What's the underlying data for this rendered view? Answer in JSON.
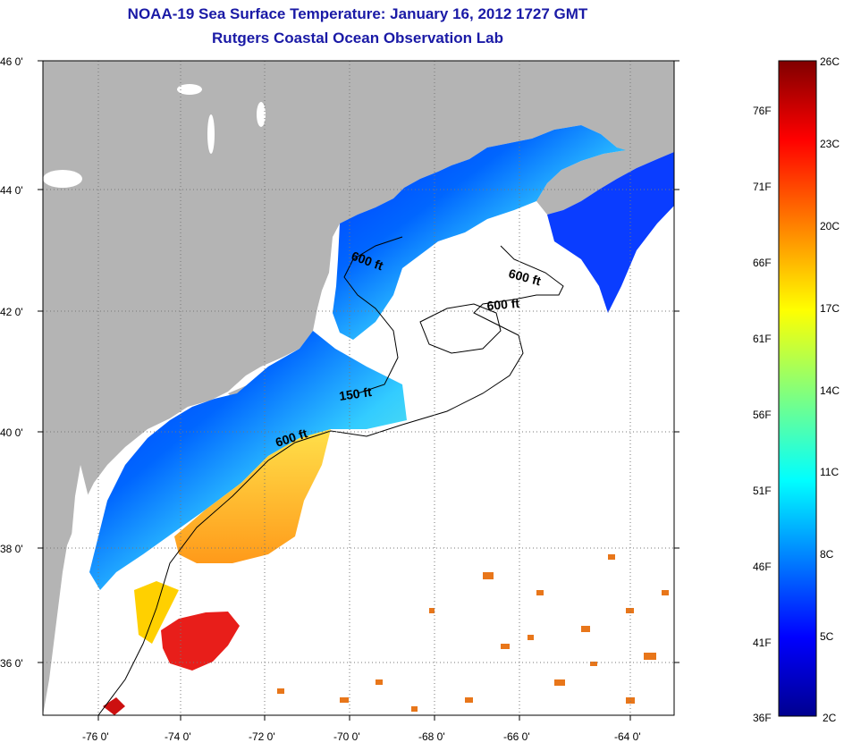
{
  "header": {
    "title_line1": "NOAA-19 Sea Surface Temperature:  January 16, 2012 1727 GMT",
    "title_line2": "Rutgers Coastal Ocean Observation Lab",
    "title_color": "#1a1aa6"
  },
  "map": {
    "lat_labels": [
      "46 0'",
      "44 0'",
      "42 0'",
      "40 0'",
      "38 0'",
      "36 0'"
    ],
    "lon_labels": [
      "-76 0'",
      "-74 0'",
      "-72 0'",
      "-70 0'",
      "-68 0'",
      "-66 0'",
      "-64 0'"
    ],
    "depth_labels": [
      "600 ft",
      "600 ft",
      "600 ft",
      "150 ft",
      "600 ft"
    ],
    "land_color": "#b4b4b4",
    "ocean_no_data_color": "#ffffff"
  },
  "colorbar": {
    "fahrenheit_labels": [
      "76F",
      "71F",
      "66F",
      "61F",
      "56F",
      "51F",
      "46F",
      "41F",
      "36F"
    ],
    "celsius_labels": [
      "26C",
      "23C",
      "20C",
      "17C",
      "14C",
      "11C",
      "8C",
      "5C",
      "2C"
    ],
    "colormap": [
      "#00008f",
      "#0000ff",
      "#0080ff",
      "#00ffff",
      "#80ff80",
      "#ffff00",
      "#ff8000",
      "#ff0000",
      "#800000"
    ]
  }
}
